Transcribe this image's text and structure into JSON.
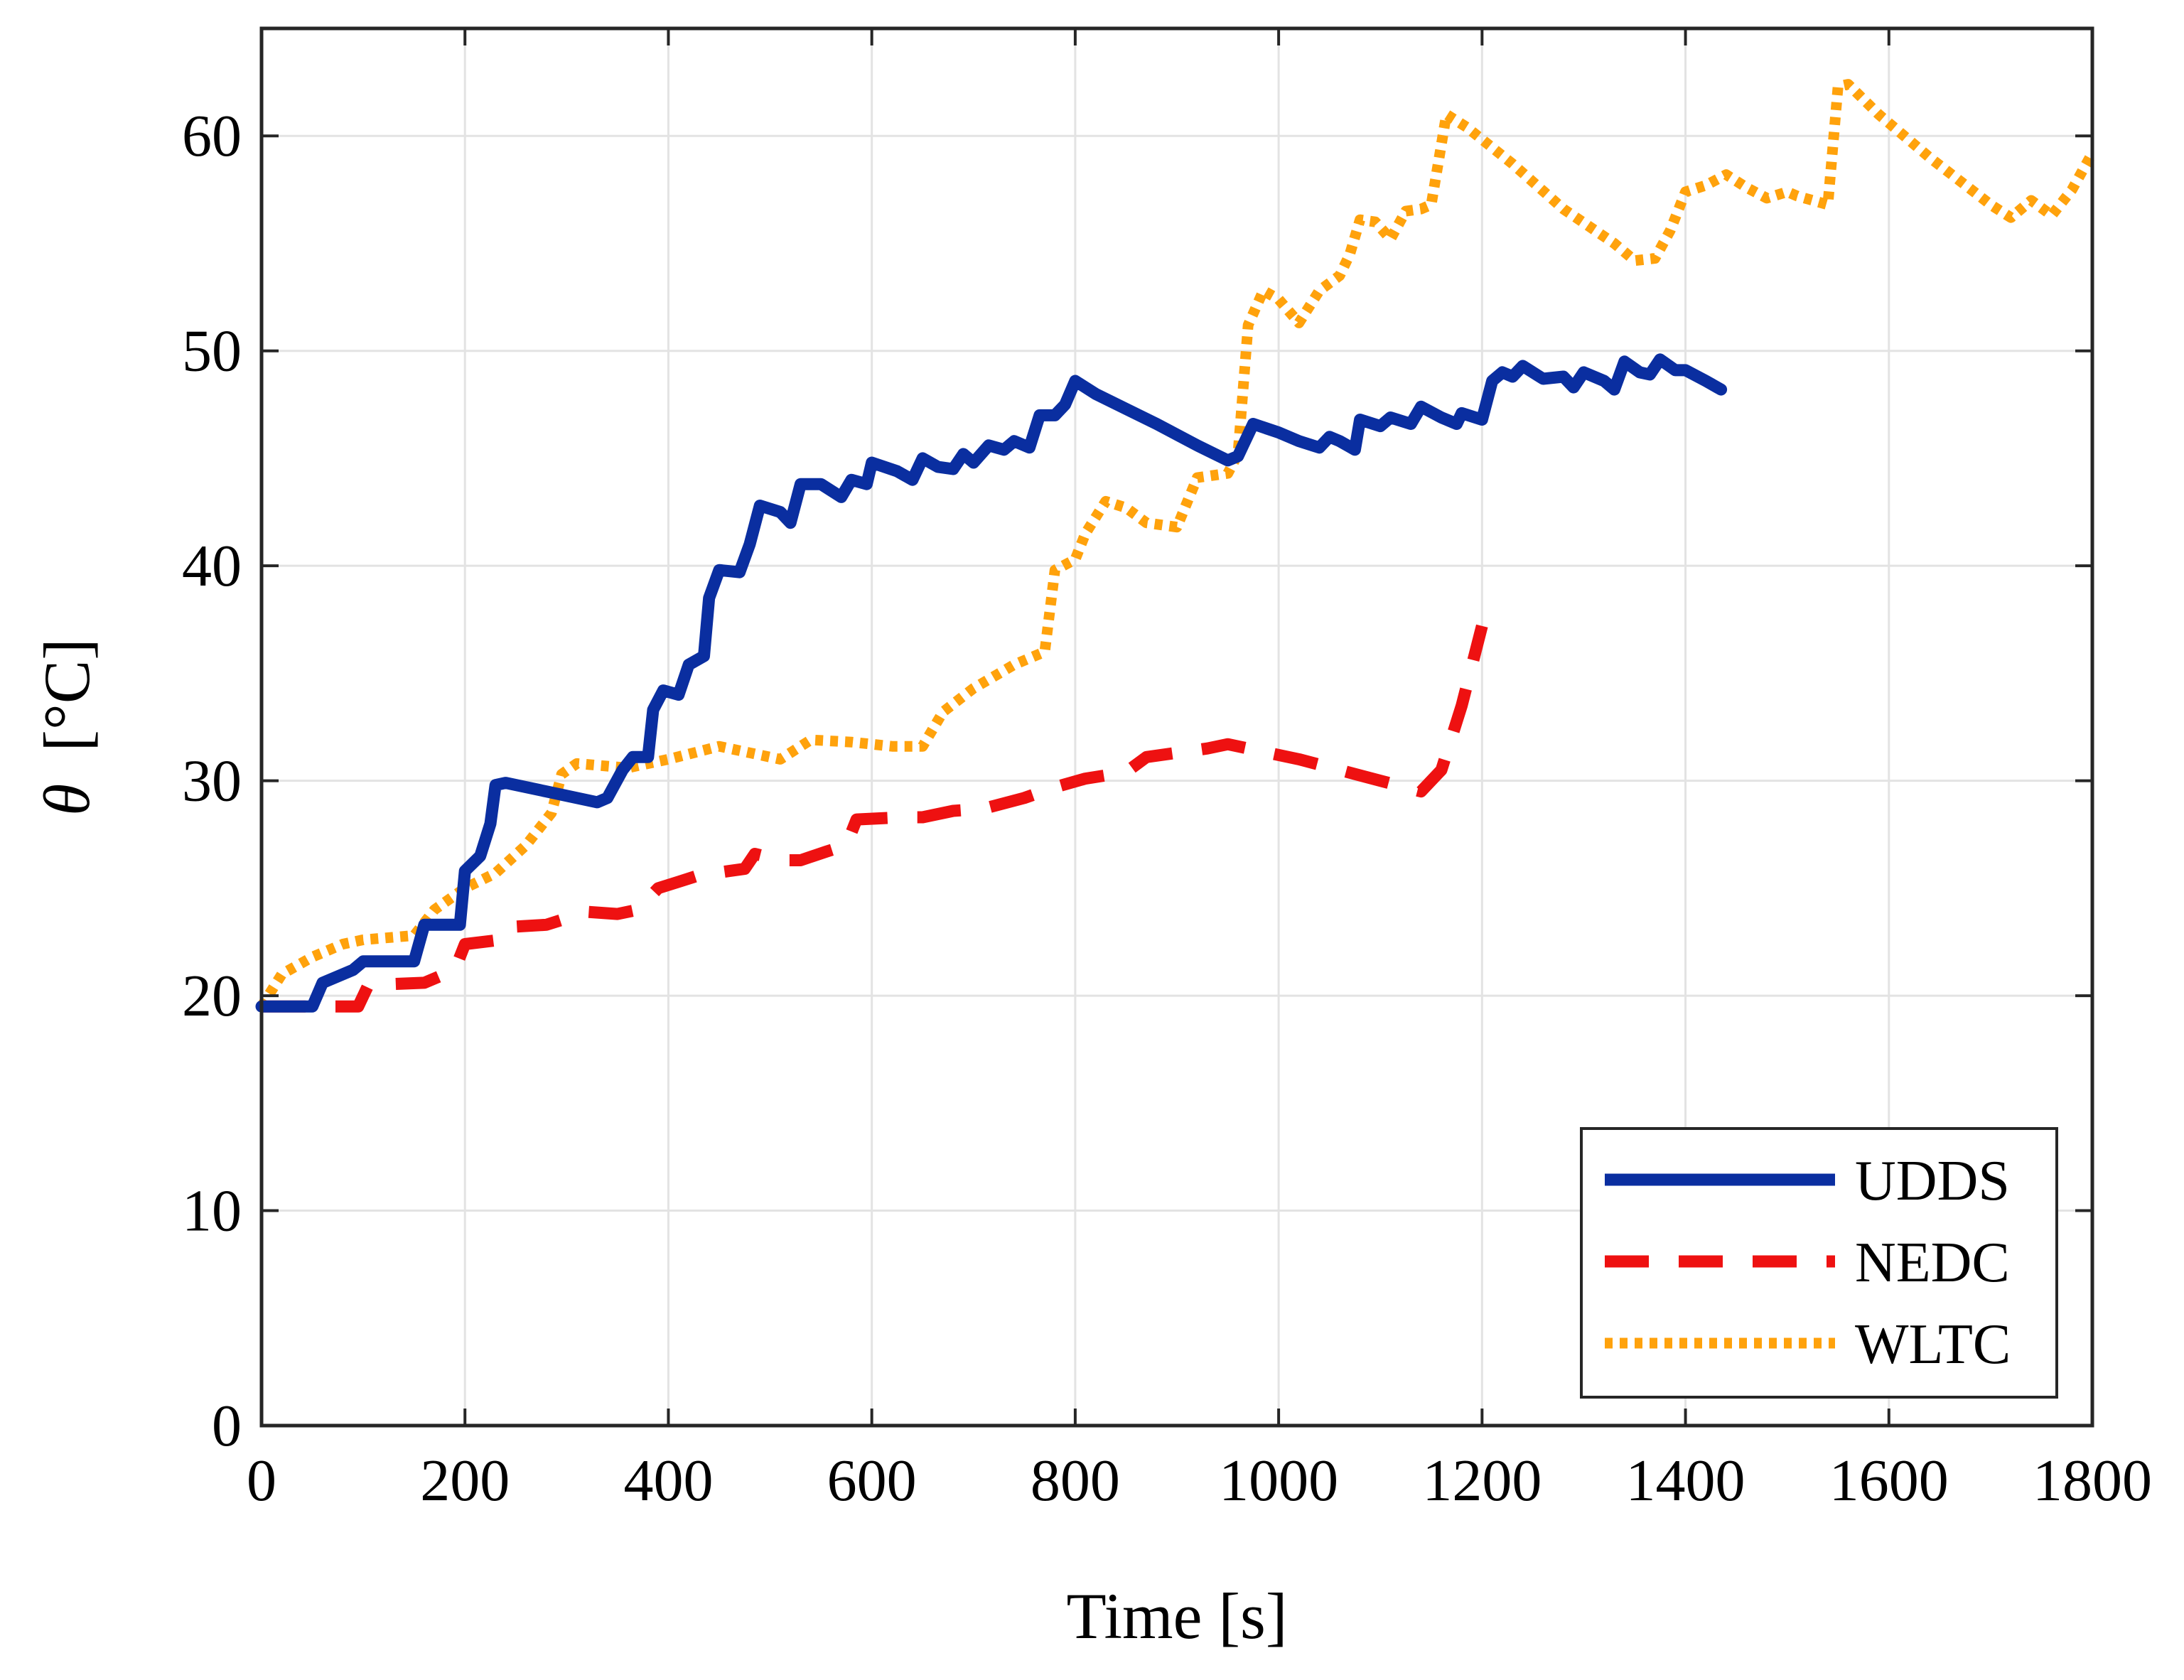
{
  "chart_data": {
    "type": "line",
    "title": "",
    "xlabel": "Time [s]",
    "ylabel_symbol": "θ",
    "ylabel_unit": "[°C]",
    "xlim": [
      0,
      1800
    ],
    "ylim": [
      0,
      65
    ],
    "xticks": [
      0,
      200,
      400,
      600,
      800,
      1000,
      1200,
      1400,
      1600,
      1800
    ],
    "yticks": [
      0,
      10,
      20,
      30,
      40,
      50,
      60
    ],
    "xtick_labels": [
      "0",
      "200",
      "400",
      "600",
      "800",
      "1000",
      "1200",
      "1400",
      "1600",
      "1800"
    ],
    "ytick_labels": [
      "0",
      "10",
      "20",
      "30",
      "40",
      "50",
      "60"
    ],
    "grid": true,
    "legend_position": "bottom-right",
    "series": [
      {
        "name": "UDDS",
        "color": "#0a2ea0",
        "style": "solid",
        "points": [
          [
            0,
            19.5
          ],
          [
            50,
            19.5
          ],
          [
            60,
            20.6
          ],
          [
            90,
            21.2
          ],
          [
            100,
            21.6
          ],
          [
            150,
            21.6
          ],
          [
            160,
            23.3
          ],
          [
            195,
            23.3
          ],
          [
            200,
            25.8
          ],
          [
            215,
            26.5
          ],
          [
            225,
            28
          ],
          [
            230,
            29.8
          ],
          [
            240,
            29.9
          ],
          [
            280,
            29.5
          ],
          [
            330,
            29
          ],
          [
            340,
            29.2
          ],
          [
            355,
            30.5
          ],
          [
            365,
            31.1
          ],
          [
            380,
            31.1
          ],
          [
            385,
            33.3
          ],
          [
            395,
            34.2
          ],
          [
            410,
            34
          ],
          [
            420,
            35.4
          ],
          [
            435,
            35.8
          ],
          [
            440,
            38.5
          ],
          [
            450,
            39.8
          ],
          [
            470,
            39.7
          ],
          [
            480,
            41
          ],
          [
            490,
            42.8
          ],
          [
            510,
            42.5
          ],
          [
            520,
            42
          ],
          [
            530,
            43.8
          ],
          [
            550,
            43.8
          ],
          [
            570,
            43.2
          ],
          [
            580,
            44
          ],
          [
            595,
            43.8
          ],
          [
            600,
            44.8
          ],
          [
            625,
            44.4
          ],
          [
            640,
            44
          ],
          [
            650,
            45
          ],
          [
            665,
            44.6
          ],
          [
            680,
            44.5
          ],
          [
            690,
            45.2
          ],
          [
            700,
            44.8
          ],
          [
            715,
            45.6
          ],
          [
            730,
            45.4
          ],
          [
            740,
            45.8
          ],
          [
            755,
            45.5
          ],
          [
            765,
            47
          ],
          [
            780,
            47
          ],
          [
            790,
            47.5
          ],
          [
            800,
            48.6
          ],
          [
            820,
            48
          ],
          [
            850,
            47.3
          ],
          [
            880,
            46.6
          ],
          [
            920,
            45.6
          ],
          [
            950,
            44.9
          ],
          [
            960,
            45.1
          ],
          [
            975,
            46.6
          ],
          [
            1000,
            46.2
          ],
          [
            1020,
            45.8
          ],
          [
            1040,
            45.5
          ],
          [
            1050,
            46
          ],
          [
            1060,
            45.8
          ],
          [
            1075,
            45.4
          ],
          [
            1080,
            46.8
          ],
          [
            1100,
            46.5
          ],
          [
            1110,
            46.9
          ],
          [
            1130,
            46.6
          ],
          [
            1140,
            47.4
          ],
          [
            1160,
            46.9
          ],
          [
            1175,
            46.6
          ],
          [
            1180,
            47.1
          ],
          [
            1200,
            46.8
          ],
          [
            1210,
            48.6
          ],
          [
            1220,
            49
          ],
          [
            1230,
            48.8
          ],
          [
            1240,
            49.3
          ],
          [
            1260,
            48.7
          ],
          [
            1280,
            48.8
          ],
          [
            1290,
            48.3
          ],
          [
            1300,
            49
          ],
          [
            1320,
            48.6
          ],
          [
            1330,
            48.2
          ],
          [
            1340,
            49.5
          ],
          [
            1355,
            49
          ],
          [
            1365,
            48.9
          ],
          [
            1375,
            49.6
          ],
          [
            1390,
            49.1
          ],
          [
            1400,
            49.1
          ],
          [
            1420,
            48.6
          ],
          [
            1435,
            48.2
          ]
        ]
      },
      {
        "name": "NEDC",
        "color": "#ee1111",
        "style": "dashed",
        "points": [
          [
            0,
            19.5
          ],
          [
            95,
            19.5
          ],
          [
            105,
            20.5
          ],
          [
            160,
            20.6
          ],
          [
            190,
            21.2
          ],
          [
            200,
            22.4
          ],
          [
            235,
            22.6
          ],
          [
            245,
            23.2
          ],
          [
            280,
            23.3
          ],
          [
            320,
            23.9
          ],
          [
            350,
            23.8
          ],
          [
            370,
            24
          ],
          [
            390,
            25
          ],
          [
            410,
            25.3
          ],
          [
            430,
            25.6
          ],
          [
            460,
            25.8
          ],
          [
            475,
            25.9
          ],
          [
            485,
            26.6
          ],
          [
            510,
            26.3
          ],
          [
            530,
            26.3
          ],
          [
            555,
            26.7
          ],
          [
            575,
            27
          ],
          [
            585,
            28.2
          ],
          [
            630,
            28.3
          ],
          [
            650,
            28.3
          ],
          [
            680,
            28.6
          ],
          [
            710,
            28.7
          ],
          [
            750,
            29.2
          ],
          [
            780,
            29.7
          ],
          [
            810,
            30.1
          ],
          [
            850,
            30.4
          ],
          [
            870,
            31.1
          ],
          [
            900,
            31.3
          ],
          [
            930,
            31.5
          ],
          [
            950,
            31.7
          ],
          [
            980,
            31.4
          ],
          [
            1020,
            31
          ],
          [
            1060,
            30.5
          ],
          [
            1100,
            30
          ],
          [
            1140,
            29.5
          ],
          [
            1160,
            30.5
          ],
          [
            1180,
            33.5
          ],
          [
            1200,
            37.2
          ]
        ]
      },
      {
        "name": "WLTC",
        "color": "#ffa20c",
        "style": "dotted",
        "points": [
          [
            0,
            19.5
          ],
          [
            20,
            21
          ],
          [
            50,
            21.8
          ],
          [
            80,
            22.4
          ],
          [
            100,
            22.6
          ],
          [
            150,
            22.8
          ],
          [
            170,
            24
          ],
          [
            200,
            25
          ],
          [
            230,
            25.7
          ],
          [
            260,
            27
          ],
          [
            285,
            28.5
          ],
          [
            295,
            30.3
          ],
          [
            310,
            30.8
          ],
          [
            360,
            30.6
          ],
          [
            400,
            31
          ],
          [
            450,
            31.6
          ],
          [
            480,
            31.3
          ],
          [
            510,
            31
          ],
          [
            540,
            31.9
          ],
          [
            580,
            31.8
          ],
          [
            620,
            31.6
          ],
          [
            650,
            31.6
          ],
          [
            670,
            33.2
          ],
          [
            700,
            34.3
          ],
          [
            740,
            35.4
          ],
          [
            770,
            36
          ],
          [
            780,
            39.8
          ],
          [
            800,
            40.3
          ],
          [
            810,
            41.5
          ],
          [
            830,
            43
          ],
          [
            850,
            42.7
          ],
          [
            870,
            42
          ],
          [
            900,
            41.8
          ],
          [
            920,
            44.1
          ],
          [
            950,
            44.3
          ],
          [
            960,
            45.2
          ],
          [
            970,
            51.2
          ],
          [
            985,
            52.8
          ],
          [
            1000,
            52.4
          ],
          [
            1020,
            51.3
          ],
          [
            1040,
            52.8
          ],
          [
            1060,
            53.5
          ],
          [
            1070,
            54.5
          ],
          [
            1080,
            56.1
          ],
          [
            1095,
            56
          ],
          [
            1110,
            55.2
          ],
          [
            1125,
            56.5
          ],
          [
            1140,
            56.6
          ],
          [
            1150,
            56.8
          ],
          [
            1165,
            61
          ],
          [
            1185,
            60.4
          ],
          [
            1230,
            58.7
          ],
          [
            1280,
            56.6
          ],
          [
            1330,
            55
          ],
          [
            1350,
            54.2
          ],
          [
            1370,
            54.3
          ],
          [
            1385,
            55.6
          ],
          [
            1400,
            57.4
          ],
          [
            1420,
            57.7
          ],
          [
            1440,
            58.2
          ],
          [
            1460,
            57.6
          ],
          [
            1480,
            57.1
          ],
          [
            1500,
            57.4
          ],
          [
            1510,
            57.2
          ],
          [
            1540,
            56.8
          ],
          [
            1550,
            62.3
          ],
          [
            1560,
            62.4
          ],
          [
            1590,
            61
          ],
          [
            1640,
            59
          ],
          [
            1700,
            56.8
          ],
          [
            1720,
            56.2
          ],
          [
            1740,
            57
          ],
          [
            1760,
            56.3
          ],
          [
            1780,
            57.5
          ],
          [
            1800,
            59.2
          ]
        ]
      }
    ]
  }
}
